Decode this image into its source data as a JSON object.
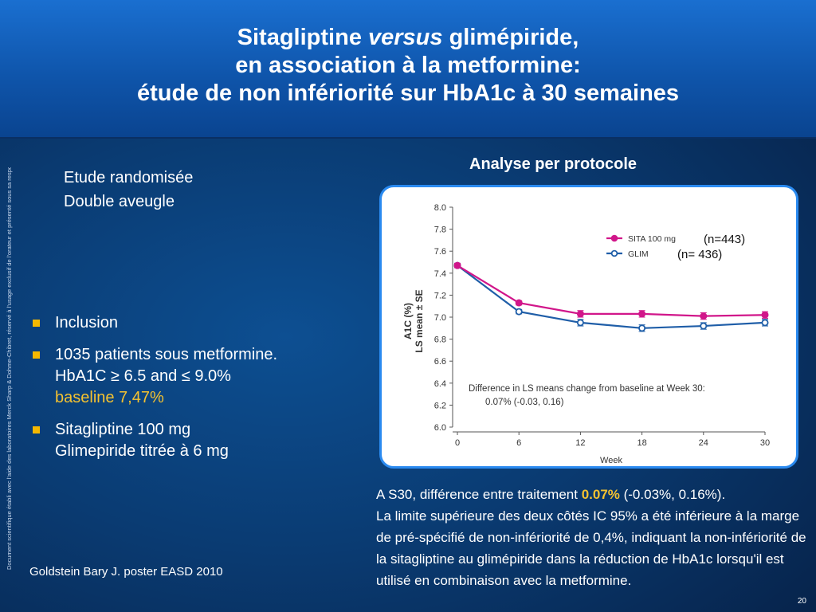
{
  "title": {
    "line1_pre": "Sitagliptine ",
    "line1_em": "versus",
    "line1_post": " glimépiride,",
    "line2": "en association à la metformine:",
    "line3": "étude de non infériorité sur HbA1c à 30 semaines"
  },
  "side_note": "Document scientifique établi avec l'aide des laboratoires Merck Sharp & Dohme-Chibret, réservé à l'usage exclusif de l'orateur et présenté sous sa responsabilité",
  "study_design": [
    "Etude randomisée",
    "Double aveugle"
  ],
  "bullets": {
    "b1": "Inclusion",
    "b2_line1": "1035 patients sous metformine.",
    "b2_line2": "HbA1C ≥ 6.5 and ≤ 9.0%",
    "b2_line3": "baseline 7,47%",
    "b3_line1": "Sitagliptine 100 mg",
    "b3_line2": "Glimepiride titrée à 6 mg"
  },
  "reference": "Goldstein  Bary J.  poster EASD 2010",
  "panel_heading": "Analyse per protocole",
  "caption": {
    "pre": "A S30, différence entre traitement ",
    "highlight": "0.07%",
    "post": " (-0.03%, 0.16%).",
    "body": "La limite supérieure des deux côtés IC 95% a été inférieure à la marge de pré-spécifié de non-infériorité de 0,4%, indiquant la non-infériorité de la sitagliptine au glimépiride dans la réduction de HbA1c lorsqu'il est utilisé en combinaison avec la metformine."
  },
  "page_number": "20",
  "chart_data": {
    "type": "line",
    "x": [
      0,
      6,
      12,
      18,
      24,
      30
    ],
    "xlabel": "Week",
    "ylabel_line1": "A1C (%)",
    "ylabel_line2": "LS mean ± SE",
    "ylim": [
      6.0,
      8.0
    ],
    "yticks": [
      6.0,
      6.2,
      6.4,
      6.6,
      6.8,
      7.0,
      7.2,
      7.4,
      7.6,
      7.8,
      8.0
    ],
    "grid": false,
    "legend_position": "top-right",
    "series": [
      {
        "name": "SITA 100 mg",
        "n_label": "(n=443)",
        "color": "#d1168a",
        "marker": "filled-circle",
        "values": [
          7.47,
          7.13,
          7.03,
          7.03,
          7.01,
          7.02
        ],
        "se": [
          0.02,
          0.02,
          0.03,
          0.03,
          0.03,
          0.03
        ]
      },
      {
        "name": "GLIM",
        "n_label": "(n= 436)",
        "color": "#1f5ea8",
        "marker": "open-circle",
        "values": [
          7.47,
          7.05,
          6.95,
          6.9,
          6.92,
          6.95
        ],
        "se": [
          0.02,
          0.02,
          0.03,
          0.03,
          0.03,
          0.03
        ]
      }
    ],
    "annotation_line1": "Difference in LS means change from baseline at Week 30:",
    "annotation_line2": "0.07% (-0.03, 0.16)"
  }
}
